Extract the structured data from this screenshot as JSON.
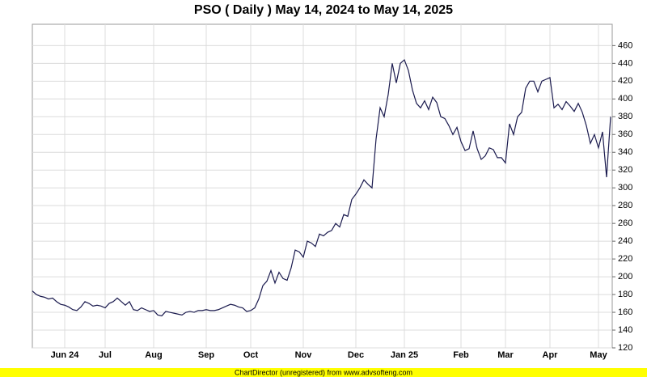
{
  "chart_data": {
    "type": "line",
    "title": "PSO ( Daily ) May 14, 2024 to May 14, 2025",
    "categories": [
      null,
      null,
      null,
      null,
      null,
      null,
      null,
      null,
      "Jun 24",
      null,
      null,
      null,
      null,
      null,
      null,
      null,
      null,
      null,
      "Jul",
      null,
      null,
      null,
      null,
      null,
      null,
      null,
      null,
      null,
      null,
      null,
      "Aug",
      null,
      null,
      null,
      null,
      null,
      null,
      null,
      null,
      null,
      null,
      null,
      null,
      "Sep",
      null,
      null,
      null,
      null,
      null,
      null,
      null,
      null,
      null,
      null,
      "Oct",
      null,
      null,
      null,
      null,
      null,
      null,
      null,
      null,
      null,
      null,
      null,
      null,
      "Nov",
      null,
      null,
      null,
      null,
      null,
      null,
      null,
      null,
      null,
      null,
      null,
      null,
      "Dec",
      null,
      null,
      null,
      null,
      null,
      null,
      null,
      null,
      null,
      null,
      null,
      "Jan 25",
      null,
      null,
      null,
      null,
      null,
      null,
      null,
      null,
      null,
      null,
      null,
      null,
      null,
      "Feb",
      null,
      null,
      null,
      null,
      null,
      null,
      null,
      null,
      null,
      null,
      "Mar",
      null,
      null,
      null,
      null,
      null,
      null,
      null,
      null,
      null,
      null,
      "Apr",
      null,
      null,
      null,
      null,
      null,
      null,
      null,
      null,
      null,
      null,
      null,
      "May",
      null,
      null,
      null
    ],
    "values": [
      184,
      180,
      178,
      177,
      175,
      176,
      172,
      169,
      168,
      166,
      163,
      162,
      166,
      172,
      170,
      167,
      168,
      167,
      165,
      170,
      172,
      176,
      172,
      168,
      172,
      163,
      162,
      165,
      163,
      161,
      162,
      157,
      156,
      161,
      160,
      159,
      158,
      157,
      160,
      161,
      160,
      162,
      162,
      163,
      162,
      162,
      163,
      165,
      167,
      169,
      168,
      166,
      165,
      161,
      162,
      165,
      175,
      190,
      195,
      207,
      193,
      205,
      198,
      196,
      210,
      230,
      228,
      222,
      240,
      238,
      234,
      248,
      246,
      250,
      252,
      260,
      256,
      270,
      268,
      287,
      293,
      300,
      309,
      304,
      300,
      355,
      390,
      380,
      405,
      440,
      418,
      440,
      444,
      432,
      410,
      395,
      390,
      398,
      388,
      402,
      396,
      380,
      378,
      370,
      360,
      368,
      352,
      342,
      344,
      364,
      344,
      332,
      336,
      345,
      343,
      334,
      334,
      328,
      372,
      360,
      380,
      385,
      412,
      420,
      420,
      408,
      420,
      422,
      424,
      390,
      394,
      388,
      397,
      392,
      386,
      395,
      385,
      370,
      350,
      360,
      345,
      363,
      312,
      380
    ],
    "color": "#1a1a4e",
    "ylim": [
      120,
      484
    ],
    "yticks": [
      120,
      140,
      160,
      180,
      200,
      220,
      240,
      260,
      280,
      300,
      320,
      340,
      360,
      380,
      400,
      420,
      440,
      460
    ],
    "grid": true
  },
  "footer": "ChartDirector (unregistered) from www.advsofteng.com"
}
